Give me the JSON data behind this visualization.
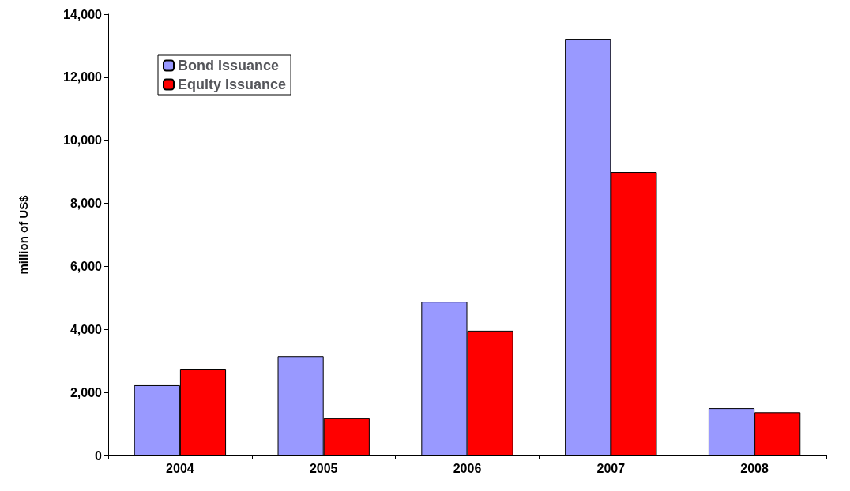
{
  "chart_data": {
    "type": "bar",
    "ylabel": "million of US$",
    "categories": [
      "2004",
      "2005",
      "2006",
      "2007",
      "2008"
    ],
    "series": [
      {
        "name": "Bond Issuance",
        "color": "#9999ff",
        "values": [
          2230,
          3150,
          4880,
          13200,
          1500
        ]
      },
      {
        "name": "Equity Issuance",
        "color": "#ff0000",
        "values": [
          2730,
          1180,
          3960,
          8990,
          1370
        ]
      }
    ],
    "ylim": [
      0,
      14000
    ],
    "yticks": [
      {
        "value": 0,
        "label": "0"
      },
      {
        "value": 2000,
        "label": "2,000"
      },
      {
        "value": 4000,
        "label": "4,000"
      },
      {
        "value": 6000,
        "label": "6,000"
      },
      {
        "value": 8000,
        "label": "8,000"
      },
      {
        "value": 10000,
        "label": "10,000"
      },
      {
        "value": 12000,
        "label": "12,000"
      },
      {
        "value": 14000,
        "label": "14,000"
      }
    ],
    "grid": false,
    "legend": "top left"
  }
}
